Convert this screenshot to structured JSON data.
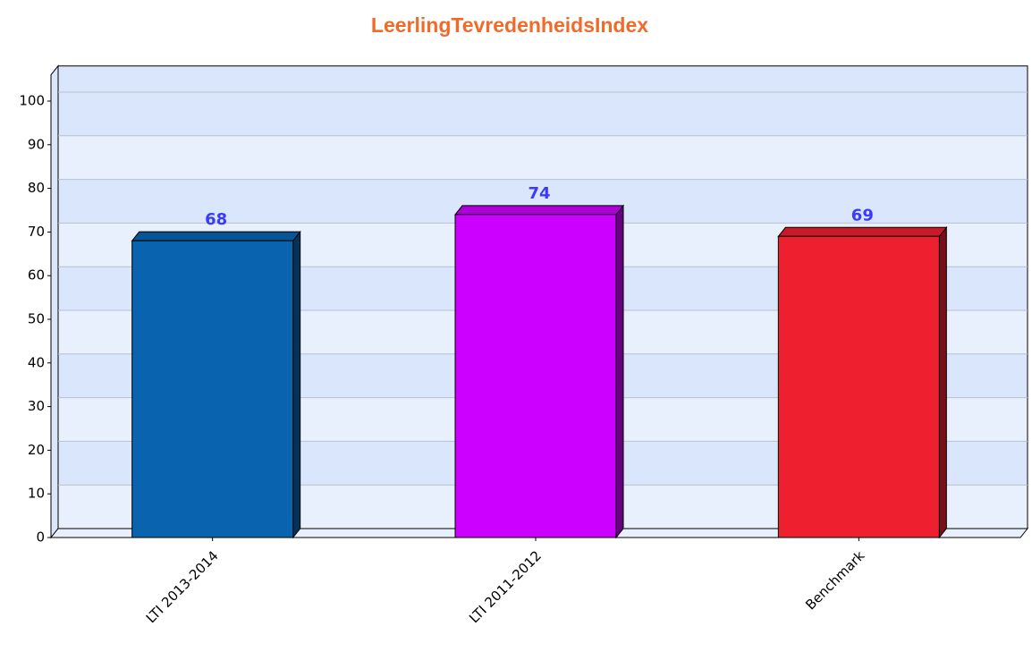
{
  "chart_data": {
    "type": "bar3d",
    "title": "LeerlingTevredenheidsIndex",
    "categories": [
      "LTI 2013-2014",
      "LTI 2011-2012",
      "Benchmark"
    ],
    "values": [
      68,
      74,
      69
    ],
    "colors": [
      "#0a63ae",
      "#cc00ff",
      "#ee1f2e"
    ],
    "ylim": [
      0,
      106
    ],
    "yticks": [
      0,
      10,
      20,
      30,
      40,
      50,
      60,
      70,
      80,
      90,
      100
    ],
    "grid": true
  }
}
